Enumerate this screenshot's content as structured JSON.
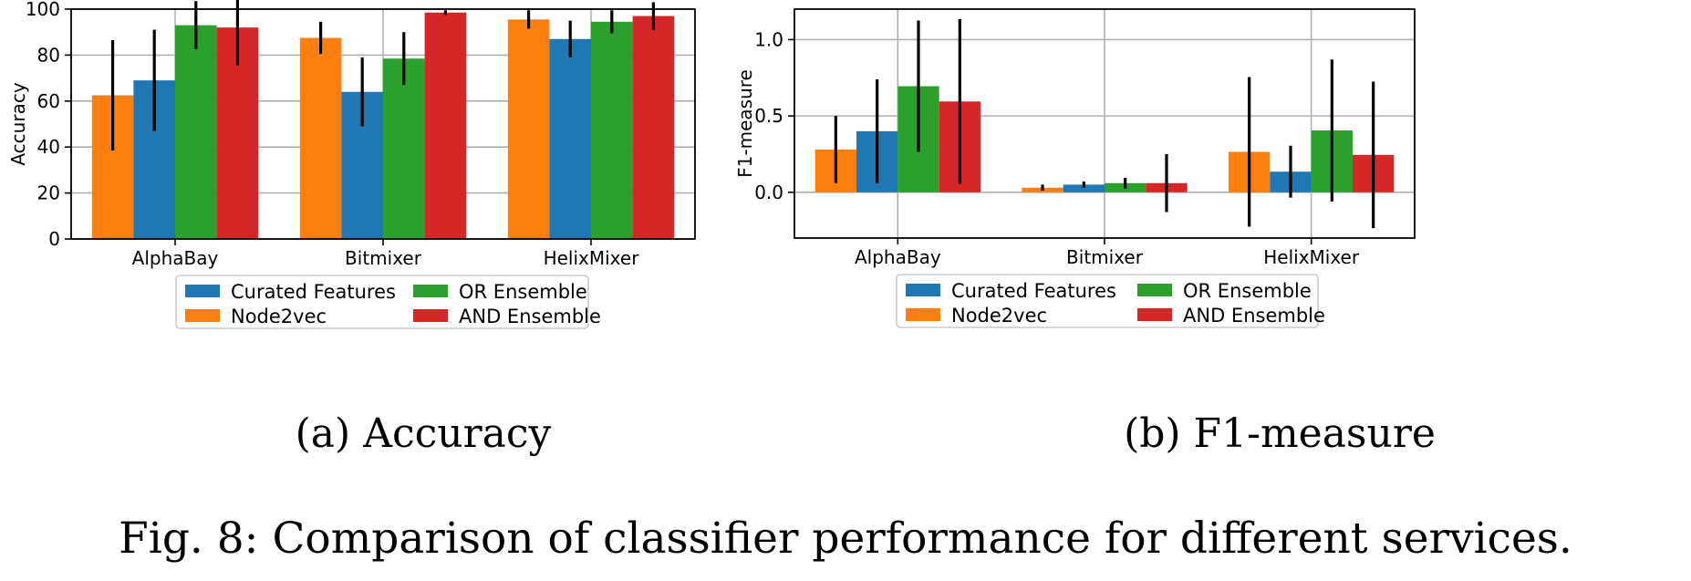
{
  "chart_data": [
    {
      "type": "bar",
      "ylabel": "Accuracy",
      "categories": [
        "AlphaBay",
        "Bitmixer",
        "HelixMixer"
      ],
      "ylim": [
        0,
        100
      ],
      "yticks": [
        0,
        20,
        40,
        60,
        80,
        100
      ],
      "grid": true,
      "legend_position": "bottom-center",
      "series": [
        {
          "name": "Node2vec",
          "color": "#ff7f0e",
          "values": [
            62.5,
            87.5,
            95.5
          ],
          "errors": [
            24,
            7,
            4
          ]
        },
        {
          "name": "Curated Features",
          "color": "#1f77b4",
          "values": [
            69,
            64,
            87
          ],
          "errors": [
            22,
            15,
            8
          ]
        },
        {
          "name": "OR Ensemble",
          "color": "#2ca02c",
          "values": [
            93,
            78.5,
            94.5
          ],
          "errors": [
            10.5,
            11.5,
            5
          ]
        },
        {
          "name": "AND Ensemble",
          "color": "#d62728",
          "values": [
            92,
            98.5,
            97
          ],
          "errors": [
            16.5,
            1,
            6
          ]
        }
      ],
      "caption": "(a) Accuracy"
    },
    {
      "type": "bar",
      "ylabel": "F1-measure",
      "categories": [
        "AlphaBay",
        "Bitmixer",
        "HelixMixer"
      ],
      "ylim": [
        -0.3,
        1.2
      ],
      "yticks": [
        0.0,
        0.5,
        1.0
      ],
      "yticklabels": [
        "0.0",
        "0.5",
        "1.0"
      ],
      "grid": true,
      "legend_position": "bottom-center",
      "series": [
        {
          "name": "Node2vec",
          "color": "#ff7f0e",
          "values": [
            0.28,
            0.03,
            0.265
          ],
          "errors": [
            0.22,
            0.02,
            0.49
          ]
        },
        {
          "name": "Curated Features",
          "color": "#1f77b4",
          "values": [
            0.4,
            0.05,
            0.135
          ],
          "errors": [
            0.34,
            0.02,
            0.17
          ]
        },
        {
          "name": "OR Ensemble",
          "color": "#2ca02c",
          "values": [
            0.695,
            0.06,
            0.405
          ],
          "errors": [
            0.43,
            0.035,
            0.465
          ]
        },
        {
          "name": "AND Ensemble",
          "color": "#d62728",
          "values": [
            0.595,
            0.06,
            0.245
          ],
          "errors": [
            0.54,
            0.19,
            0.48
          ]
        }
      ],
      "caption": "(b) F1-measure"
    }
  ],
  "legend": [
    {
      "label": "Curated Features",
      "color": "#1f77b4"
    },
    {
      "label": "Node2vec",
      "color": "#ff7f0e"
    },
    {
      "label": "OR Ensemble",
      "color": "#2ca02c"
    },
    {
      "label": "AND Ensemble",
      "color": "#d62728"
    }
  ],
  "figure_caption": "Fig. 8: Comparison of classifier performance for different services."
}
